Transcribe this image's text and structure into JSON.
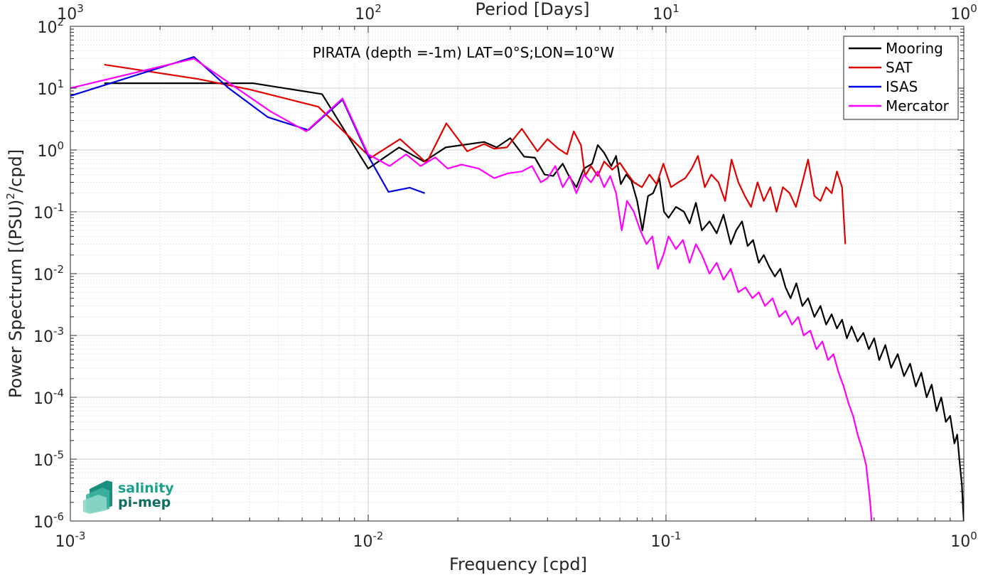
{
  "chart_data": {
    "type": "line",
    "title": "PIRATA (depth =-1m) LAT=0°S;LON=10°W",
    "xlabel": "Frequency [cpd]",
    "ylabel_main": "Power Spectrum [(PSU)",
    "ylabel_sup": "2",
    "ylabel_tail": "/cpd]",
    "top_xlabel": "Period [Days]",
    "xscale": "log",
    "yscale": "log",
    "xlim": [
      0.001,
      1
    ],
    "ylim": [
      1e-06,
      100
    ],
    "grid": true,
    "legend_position": "top-right",
    "x_ticks": [
      {
        "base": "10",
        "exp": "-3"
      },
      {
        "base": "10",
        "exp": "-2"
      },
      {
        "base": "10",
        "exp": "-1"
      },
      {
        "base": "10",
        "exp": "0"
      }
    ],
    "top_ticks": [
      {
        "base": "10",
        "exp": "3"
      },
      {
        "base": "10",
        "exp": "2"
      },
      {
        "base": "10",
        "exp": "1"
      },
      {
        "base": "10",
        "exp": "0"
      }
    ],
    "y_ticks": [
      {
        "base": "10",
        "exp": "2"
      },
      {
        "base": "10",
        "exp": "1"
      },
      {
        "base": "10",
        "exp": "0"
      },
      {
        "base": "10",
        "exp": "-1"
      },
      {
        "base": "10",
        "exp": "-2"
      },
      {
        "base": "10",
        "exp": "-3"
      },
      {
        "base": "10",
        "exp": "-4"
      },
      {
        "base": "10",
        "exp": "-5"
      },
      {
        "base": "10",
        "exp": "-6"
      }
    ],
    "series": [
      {
        "name": "Mooring",
        "color": "#000000",
        "points": [
          [
            0.0013,
            12
          ],
          [
            0.0041,
            12
          ],
          [
            0.007,
            8
          ],
          [
            0.01,
            0.5
          ],
          [
            0.0127,
            1.1
          ],
          [
            0.0154,
            0.65
          ],
          [
            0.0182,
            1.1
          ],
          [
            0.0245,
            1.35
          ],
          [
            0.027,
            1.1
          ],
          [
            0.03,
            1.55
          ],
          [
            0.0334,
            0.78
          ],
          [
            0.0363,
            0.75
          ],
          [
            0.0391,
            0.4
          ],
          [
            0.0418,
            0.38
          ],
          [
            0.045,
            0.6
          ],
          [
            0.0472,
            0.38
          ],
          [
            0.05,
            0.25
          ],
          [
            0.053,
            0.5
          ],
          [
            0.0565,
            0.6
          ],
          [
            0.059,
            1.2
          ],
          [
            0.062,
            0.9
          ],
          [
            0.0655,
            0.55
          ],
          [
            0.068,
            0.8
          ],
          [
            0.0705,
            0.28
          ],
          [
            0.0735,
            0.4
          ],
          [
            0.0765,
            0.32
          ],
          [
            0.08,
            0.15
          ],
          [
            0.0833,
            0.05
          ],
          [
            0.087,
            0.18
          ],
          [
            0.0905,
            0.2
          ],
          [
            0.095,
            0.35
          ],
          [
            0.0985,
            0.1
          ],
          [
            0.102,
            0.08
          ],
          [
            0.108,
            0.12
          ],
          [
            0.115,
            0.1
          ],
          [
            0.12,
            0.065
          ],
          [
            0.126,
            0.14
          ],
          [
            0.132,
            0.05
          ],
          [
            0.14,
            0.07
          ],
          [
            0.148,
            0.045
          ],
          [
            0.156,
            0.09
          ],
          [
            0.165,
            0.03
          ],
          [
            0.172,
            0.05
          ],
          [
            0.18,
            0.07
          ],
          [
            0.188,
            0.028
          ],
          [
            0.196,
            0.035
          ],
          [
            0.205,
            0.015
          ],
          [
            0.213,
            0.02
          ],
          [
            0.222,
            0.013
          ],
          [
            0.232,
            0.009
          ],
          [
            0.242,
            0.012
          ],
          [
            0.252,
            0.006
          ],
          [
            0.262,
            0.004
          ],
          [
            0.274,
            0.007
          ],
          [
            0.287,
            0.003
          ],
          [
            0.3,
            0.004
          ],
          [
            0.315,
            0.002
          ],
          [
            0.33,
            0.003
          ],
          [
            0.345,
            0.0015
          ],
          [
            0.36,
            0.0022
          ],
          [
            0.375,
            0.0013
          ],
          [
            0.39,
            0.0018
          ],
          [
            0.405,
            0.0009
          ],
          [
            0.42,
            0.0014
          ],
          [
            0.44,
            0.0008
          ],
          [
            0.46,
            0.0011
          ],
          [
            0.48,
            0.0006
          ],
          [
            0.5,
            0.0009
          ],
          [
            0.52,
            0.0004
          ],
          [
            0.545,
            0.0007
          ],
          [
            0.57,
            0.0003
          ],
          [
            0.6,
            0.0005
          ],
          [
            0.63,
            0.00022
          ],
          [
            0.66,
            0.00035
          ],
          [
            0.69,
            0.00015
          ],
          [
            0.72,
            0.00025
          ],
          [
            0.75,
            0.0001
          ],
          [
            0.78,
            0.00016
          ],
          [
            0.81,
            6e-05
          ],
          [
            0.84,
            0.0001
          ],
          [
            0.87,
            4e-05
          ],
          [
            0.9,
            5e-05
          ],
          [
            0.93,
            1.8e-05
          ],
          [
            0.95,
            2.5e-05
          ],
          [
            0.97,
            8e-06
          ],
          [
            0.985,
            4e-06
          ],
          [
            0.995,
            1.5e-06
          ],
          [
            1.0,
            1e-06
          ]
        ]
      },
      {
        "name": "SAT",
        "color": "#e00000",
        "points": [
          [
            0.0013,
            24
          ],
          [
            0.0027,
            14
          ],
          [
            0.004,
            9.5
          ],
          [
            0.0068,
            5
          ],
          [
            0.0102,
            0.75
          ],
          [
            0.0128,
            1.5
          ],
          [
            0.0157,
            0.62
          ],
          [
            0.0183,
            2.7
          ],
          [
            0.0215,
            0.95
          ],
          [
            0.0245,
            1.25
          ],
          [
            0.0265,
            1.05
          ],
          [
            0.0292,
            1.1
          ],
          [
            0.0328,
            2.2
          ],
          [
            0.037,
            0.95
          ],
          [
            0.04,
            1.5
          ],
          [
            0.0435,
            1.05
          ],
          [
            0.0465,
            0.85
          ],
          [
            0.049,
            2.0
          ],
          [
            0.0518,
            1.2
          ],
          [
            0.0535,
            0.38
          ],
          [
            0.056,
            0.55
          ],
          [
            0.059,
            0.38
          ],
          [
            0.062,
            0.65
          ],
          [
            0.066,
            0.48
          ],
          [
            0.07,
            0.62
          ],
          [
            0.074,
            0.42
          ],
          [
            0.078,
            0.3
          ],
          [
            0.083,
            0.25
          ],
          [
            0.088,
            0.4
          ],
          [
            0.093,
            0.28
          ],
          [
            0.098,
            0.6
          ],
          [
            0.104,
            0.25
          ],
          [
            0.11,
            0.3
          ],
          [
            0.116,
            0.35
          ],
          [
            0.122,
            0.5
          ],
          [
            0.128,
            0.8
          ],
          [
            0.135,
            0.25
          ],
          [
            0.142,
            0.4
          ],
          [
            0.15,
            0.3
          ],
          [
            0.158,
            0.15
          ],
          [
            0.166,
            0.7
          ],
          [
            0.175,
            0.3
          ],
          [
            0.184,
            0.18
          ],
          [
            0.193,
            0.12
          ],
          [
            0.203,
            0.3
          ],
          [
            0.213,
            0.15
          ],
          [
            0.224,
            0.25
          ],
          [
            0.235,
            0.1
          ],
          [
            0.247,
            0.25
          ],
          [
            0.26,
            0.2
          ],
          [
            0.273,
            0.12
          ],
          [
            0.287,
            0.3
          ],
          [
            0.3,
            0.7
          ],
          [
            0.315,
            0.18
          ],
          [
            0.33,
            0.15
          ],
          [
            0.345,
            0.25
          ],
          [
            0.36,
            0.2
          ],
          [
            0.375,
            0.45
          ],
          [
            0.39,
            0.25
          ],
          [
            0.4,
            0.03
          ]
        ]
      },
      {
        "name": "ISAS",
        "color": "#0000e0",
        "points": [
          [
            0.001,
            7.5
          ],
          [
            0.0026,
            32
          ],
          [
            0.0034,
            10
          ],
          [
            0.0046,
            3.4
          ],
          [
            0.0063,
            2.1
          ],
          [
            0.0082,
            6.5
          ],
          [
            0.01,
            0.8
          ],
          [
            0.0117,
            0.21
          ],
          [
            0.0138,
            0.245
          ],
          [
            0.0155,
            0.2
          ]
        ]
      },
      {
        "name": "Mercator",
        "color": "#ff00ff",
        "points": [
          [
            0.001,
            10
          ],
          [
            0.0026,
            30
          ],
          [
            0.0047,
            4.2
          ],
          [
            0.0062,
            2.0
          ],
          [
            0.0082,
            6.8
          ],
          [
            0.01,
            0.85
          ],
          [
            0.0118,
            0.55
          ],
          [
            0.0134,
            0.85
          ],
          [
            0.015,
            0.55
          ],
          [
            0.0168,
            0.76
          ],
          [
            0.0185,
            0.5
          ],
          [
            0.0206,
            0.58
          ],
          [
            0.0235,
            0.5
          ],
          [
            0.0265,
            0.35
          ],
          [
            0.0295,
            0.42
          ],
          [
            0.0328,
            0.45
          ],
          [
            0.0355,
            0.55
          ],
          [
            0.038,
            0.3
          ],
          [
            0.04,
            0.35
          ],
          [
            0.0425,
            0.55
          ],
          [
            0.045,
            0.25
          ],
          [
            0.0475,
            0.38
          ],
          [
            0.05,
            0.2
          ],
          [
            0.053,
            0.4
          ],
          [
            0.056,
            0.3
          ],
          [
            0.059,
            0.45
          ],
          [
            0.062,
            0.25
          ],
          [
            0.065,
            0.38
          ],
          [
            0.068,
            0.2
          ],
          [
            0.071,
            0.05
          ],
          [
            0.074,
            0.15
          ],
          [
            0.078,
            0.1
          ],
          [
            0.082,
            0.05
          ],
          [
            0.086,
            0.03
          ],
          [
            0.09,
            0.04
          ],
          [
            0.094,
            0.012
          ],
          [
            0.098,
            0.02
          ],
          [
            0.102,
            0.04
          ],
          [
            0.108,
            0.025
          ],
          [
            0.114,
            0.035
          ],
          [
            0.12,
            0.015
          ],
          [
            0.126,
            0.03
          ],
          [
            0.132,
            0.02
          ],
          [
            0.14,
            0.01
          ],
          [
            0.148,
            0.015
          ],
          [
            0.156,
            0.008
          ],
          [
            0.165,
            0.012
          ],
          [
            0.175,
            0.005
          ],
          [
            0.185,
            0.006
          ],
          [
            0.195,
            0.004
          ],
          [
            0.205,
            0.005
          ],
          [
            0.215,
            0.003
          ],
          [
            0.228,
            0.004
          ],
          [
            0.24,
            0.002
          ],
          [
            0.252,
            0.0025
          ],
          [
            0.265,
            0.0015
          ],
          [
            0.278,
            0.002
          ],
          [
            0.29,
            0.001
          ],
          [
            0.305,
            0.0012
          ],
          [
            0.32,
            0.0006
          ],
          [
            0.335,
            0.0008
          ],
          [
            0.35,
            0.0004
          ],
          [
            0.365,
            0.0005
          ],
          [
            0.38,
            0.00025
          ],
          [
            0.395,
            0.00015
          ],
          [
            0.41,
            8e-05
          ],
          [
            0.425,
            5e-05
          ],
          [
            0.44,
            2.5e-05
          ],
          [
            0.455,
            1.5e-05
          ],
          [
            0.47,
            8e-06
          ],
          [
            0.485,
            2e-06
          ],
          [
            0.49,
            1e-06
          ]
        ]
      }
    ]
  },
  "logo": {
    "line1": "salinity",
    "line2": "pi-mep"
  }
}
